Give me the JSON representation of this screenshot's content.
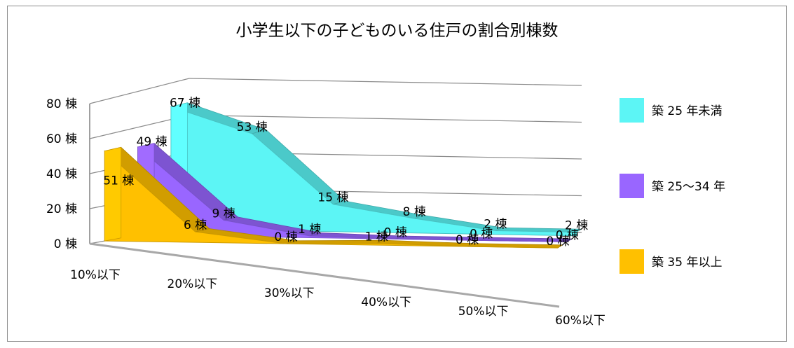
{
  "chart_data": {
    "type": "area",
    "title": "小学生以下の子どものいる住戸の割合別棟数",
    "categories": [
      "10%以下",
      "20%以下",
      "30%以下",
      "40%以下",
      "50%以下",
      "60%以下"
    ],
    "y_ticks": [
      "0 棟",
      "20 棟",
      "40 棟",
      "60 棟",
      "80 棟"
    ],
    "ylim": [
      0,
      80
    ],
    "unit": "棟",
    "legend_position": "right",
    "grid": true,
    "series": [
      {
        "name": "築 25 年未満",
        "color": "#5cf5f5",
        "values": [
          67,
          53,
          15,
          8,
          2,
          2
        ]
      },
      {
        "name": "築 25〜34 年",
        "color": "#9966ff",
        "values": [
          49,
          9,
          1,
          0,
          0,
          0
        ]
      },
      {
        "name": "築 35 年以上",
        "color": "#ffc000",
        "values": [
          51,
          6,
          0,
          1,
          0,
          0
        ]
      }
    ]
  }
}
